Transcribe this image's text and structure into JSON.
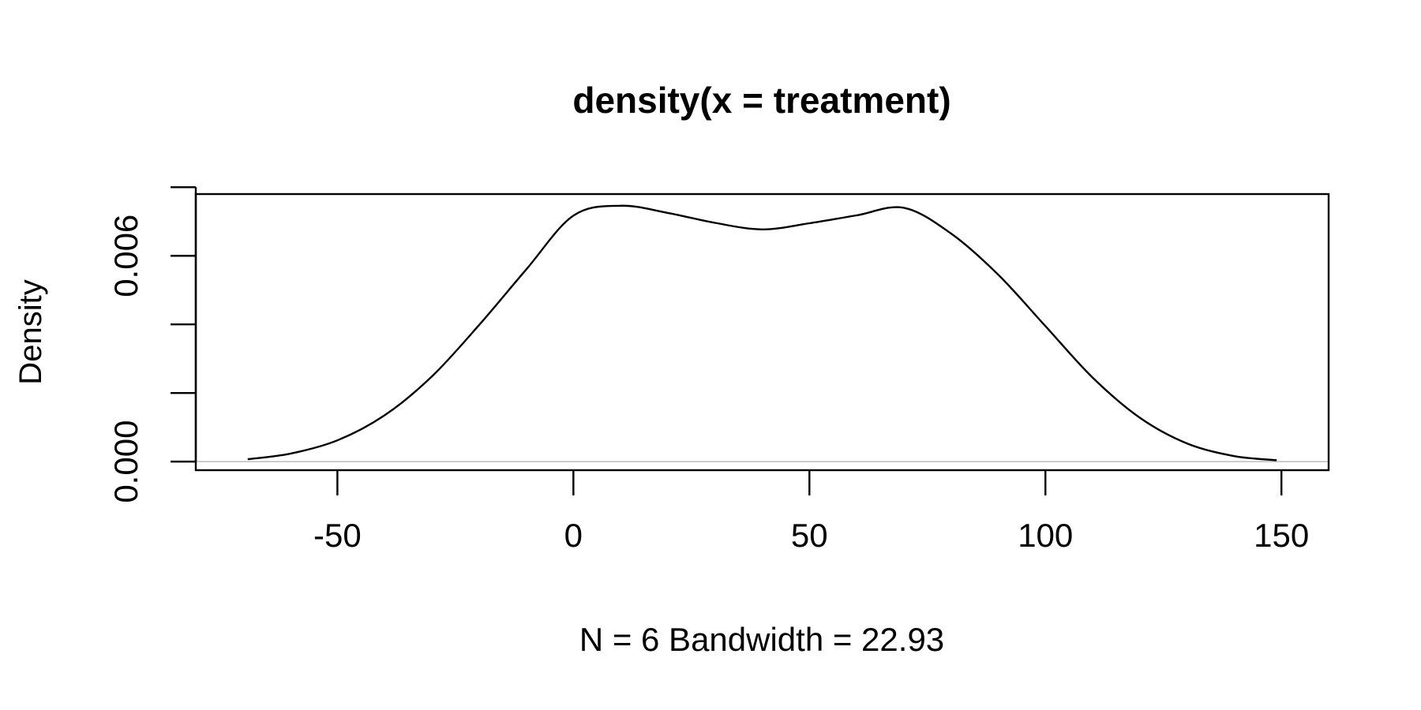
{
  "chart_data": {
    "type": "line",
    "title": "density(x = treatment)",
    "xlabel": "N = 6   Bandwidth = 22.93",
    "ylabel": "Density",
    "xlim": [
      -80,
      160
    ],
    "ylim": [
      -0.00025,
      0.0078
    ],
    "x_ticks": [
      -50,
      0,
      50,
      100,
      150
    ],
    "x_tick_labels": [
      "-50",
      "0",
      "50",
      "100",
      "150"
    ],
    "y_ticks": [
      0,
      0.002,
      0.004,
      0.006,
      0.008
    ],
    "y_tick_labels": [
      "0.000",
      "",
      "",
      "0.006",
      ""
    ],
    "grid": false,
    "baseline": 0,
    "series": [
      {
        "x": [
          -69,
          -60,
          -50,
          -40,
          -30,
          -20,
          -10,
          0,
          10,
          20,
          30,
          40,
          50,
          60,
          70,
          80,
          90,
          100,
          110,
          120,
          130,
          140,
          149
        ],
        "y": [
          7e-05,
          0.00023,
          0.00062,
          0.00135,
          0.00248,
          0.00398,
          0.0056,
          0.00717,
          0.00746,
          0.00725,
          0.00696,
          0.00677,
          0.00695,
          0.00718,
          0.0074,
          0.00665,
          0.00545,
          0.00395,
          0.00245,
          0.00128,
          0.00053,
          0.00016,
          4e-05
        ]
      }
    ]
  }
}
